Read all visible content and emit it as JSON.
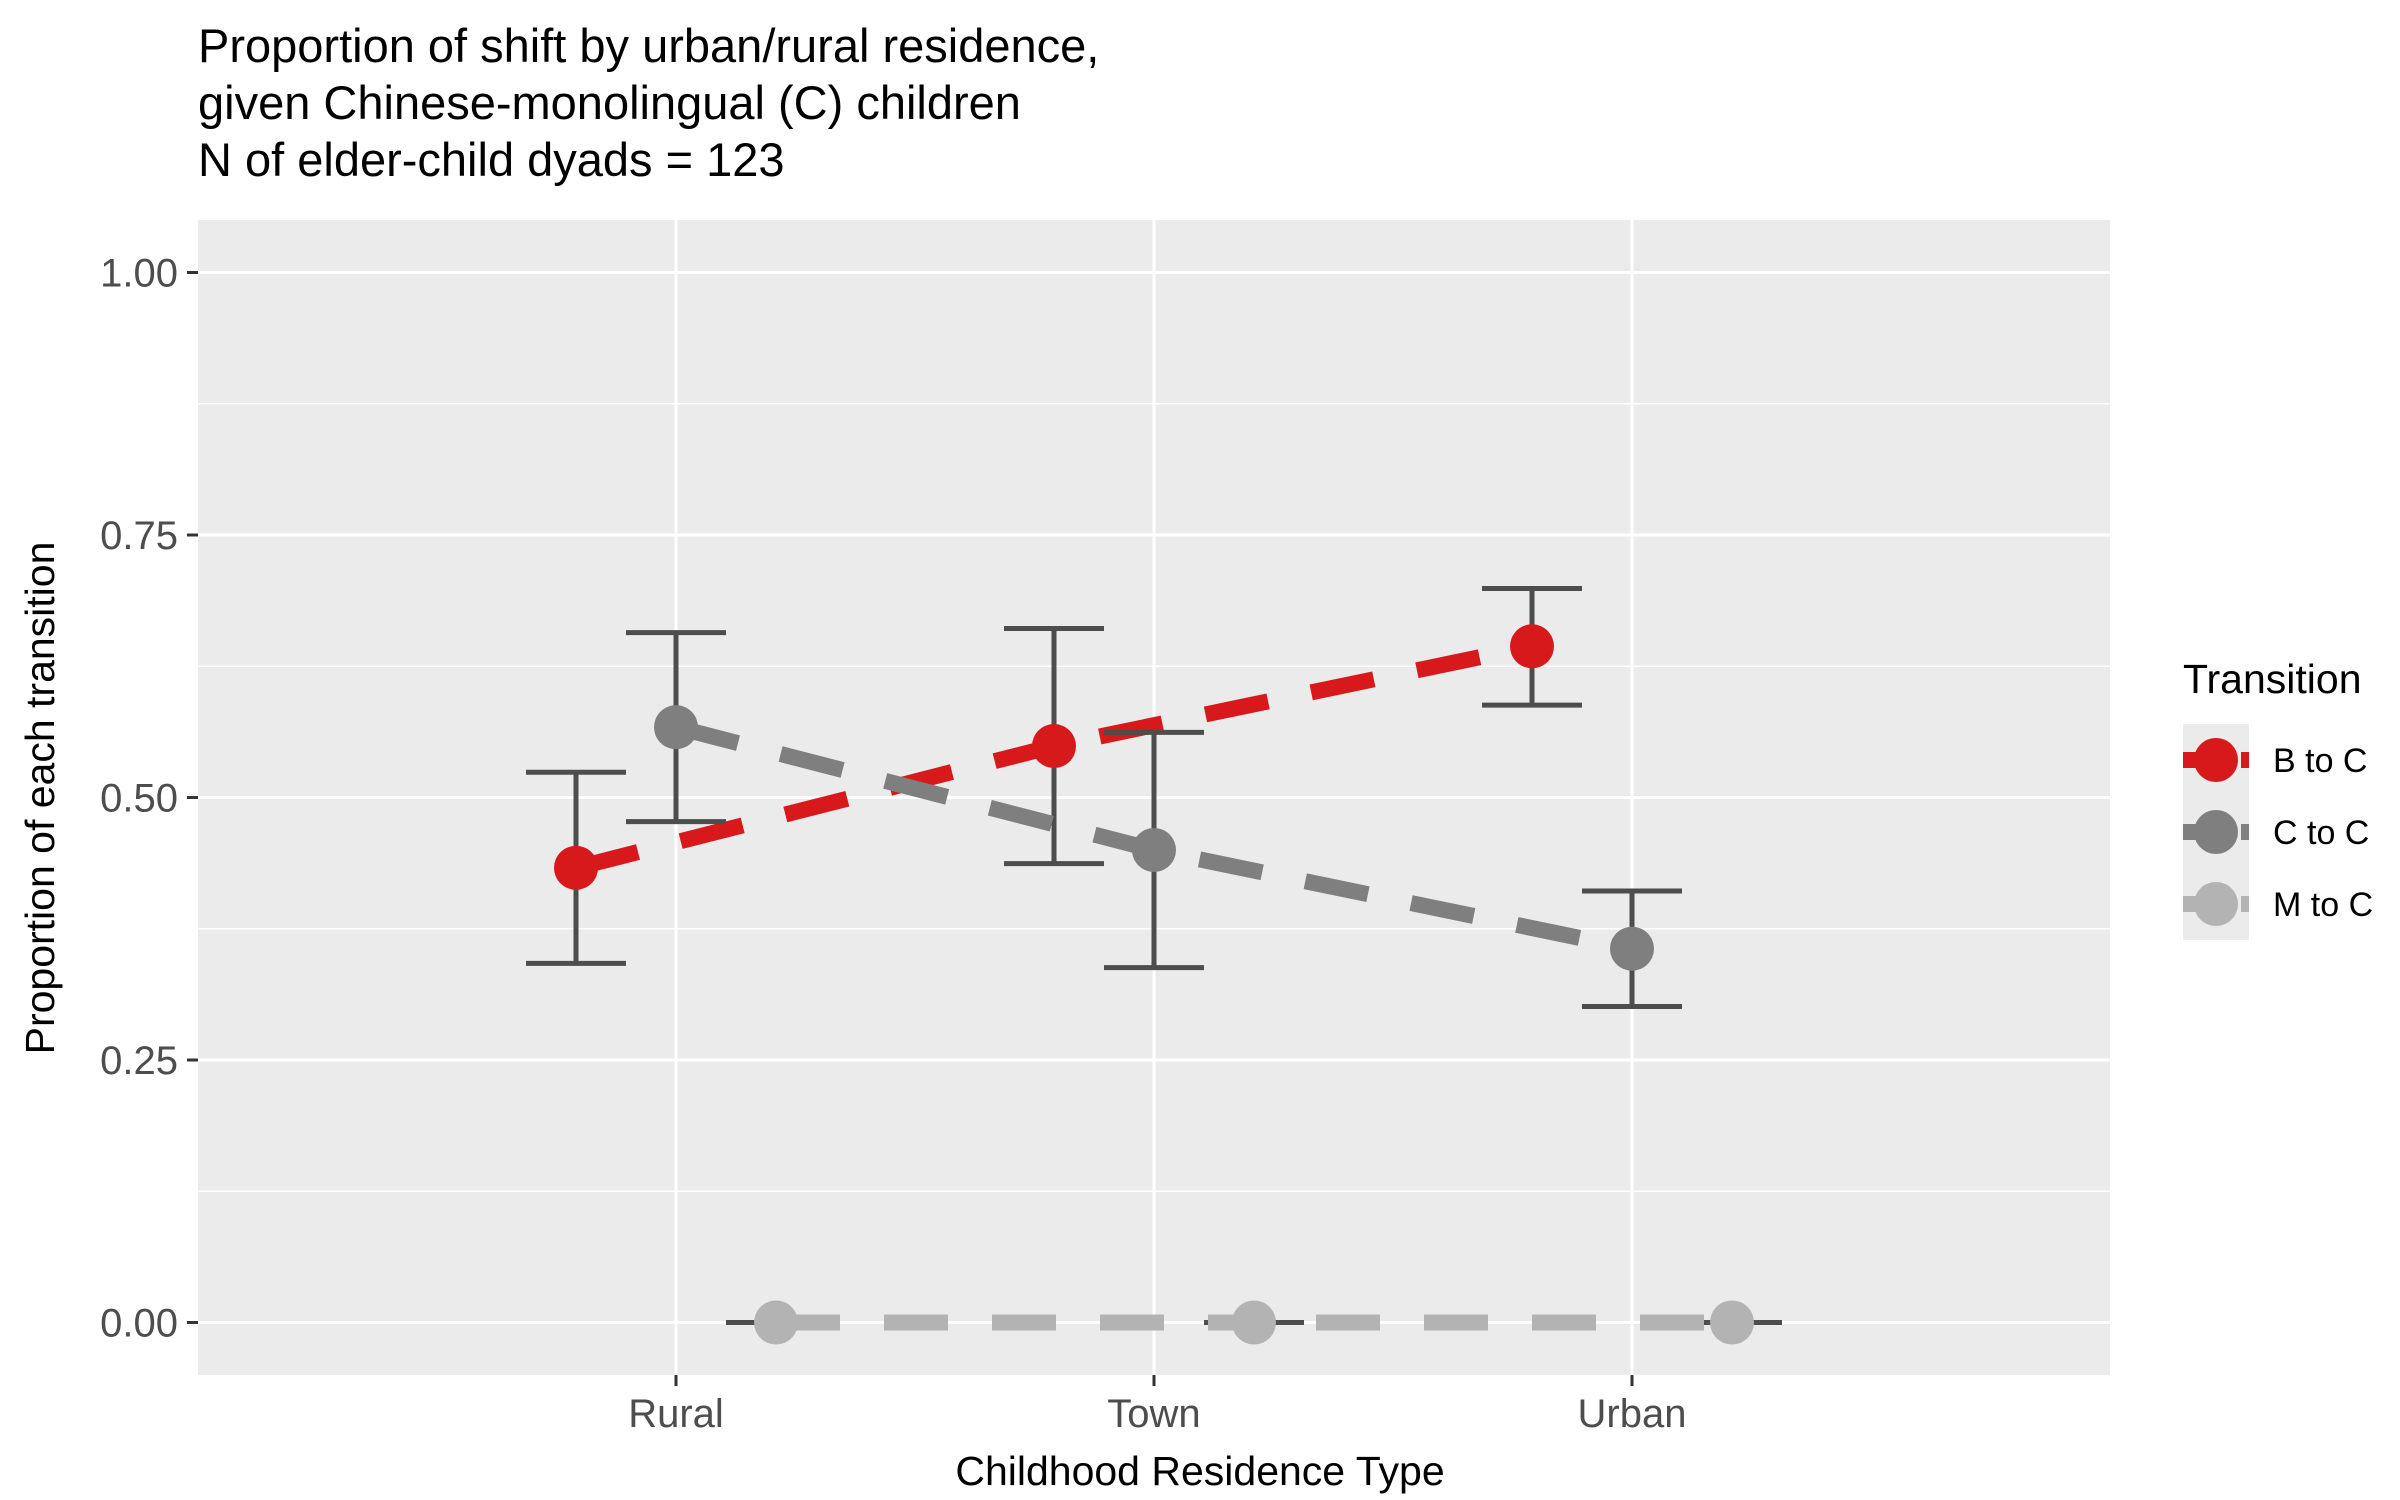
{
  "chart_data": {
    "type": "line",
    "title_lines": [
      "Proportion of shift by urban/rural residence,",
      "given Chinese-monolingual (C) children",
      "N of elder-child dyads = 123"
    ],
    "xlabel": "Childhood Residence Type",
    "ylabel": "Proportion of each transition",
    "categories": [
      "Rural",
      "Town",
      "Urban"
    ],
    "ylim": [
      -0.05,
      1.05
    ],
    "yticks": [
      0.0,
      0.25,
      0.5,
      0.75,
      1.0
    ],
    "ytick_labels": [
      "0.00",
      "0.25",
      "0.50",
      "0.75",
      "1.00"
    ],
    "grid": true,
    "legend": {
      "title": "Transition",
      "position": "right"
    },
    "series": [
      {
        "name": "B to C",
        "color": "#d7191c",
        "values": [
          0.433,
          0.549,
          0.644
        ],
        "lower": [
          0.342,
          0.437,
          0.588
        ],
        "upper": [
          0.524,
          0.661,
          0.699
        ]
      },
      {
        "name": "C to C",
        "color": "#7f7f7f",
        "values": [
          0.567,
          0.45,
          0.356
        ],
        "lower": [
          0.477,
          0.338,
          0.301
        ],
        "upper": [
          0.657,
          0.562,
          0.411
        ]
      },
      {
        "name": "M to C",
        "color": "#b3b3b3",
        "values": [
          0.0,
          0.0,
          0.0
        ],
        "lower": [
          0.0,
          0.0,
          0.0
        ],
        "upper": [
          0.0,
          0.0,
          0.0
        ]
      }
    ]
  }
}
